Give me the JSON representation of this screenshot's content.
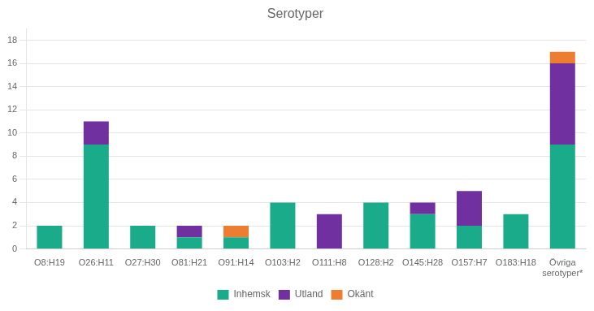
{
  "chart_data": {
    "type": "bar",
    "title": "Serotyper",
    "categories": [
      "O8:H19",
      "O26:H11",
      "O27:H30",
      "O81:H21",
      "O91:H14",
      "O103:H2",
      "O111:H8",
      "O128:H2",
      "O145:H28",
      "O157:H7",
      "O183:H18",
      "Övriga\nserotyper*"
    ],
    "series": [
      {
        "name": "Inhemsk",
        "color": "#1aab8a",
        "values": [
          2,
          9,
          2,
          1,
          1,
          4,
          0,
          4,
          3,
          2,
          3,
          9
        ]
      },
      {
        "name": "Utland",
        "color": "#7030a0",
        "values": [
          0,
          2,
          0,
          1,
          0,
          0,
          3,
          0,
          1,
          3,
          0,
          7
        ]
      },
      {
        "name": "Okänt",
        "color": "#ed7d31",
        "values": [
          0,
          0,
          0,
          0,
          1,
          0,
          0,
          0,
          0,
          0,
          0,
          1
        ]
      }
    ],
    "ylim": [
      0,
      19
    ],
    "yticks": [
      0,
      2,
      4,
      6,
      8,
      10,
      12,
      14,
      16,
      18
    ],
    "stacked": true,
    "grid": true,
    "legend": "bottom"
  }
}
